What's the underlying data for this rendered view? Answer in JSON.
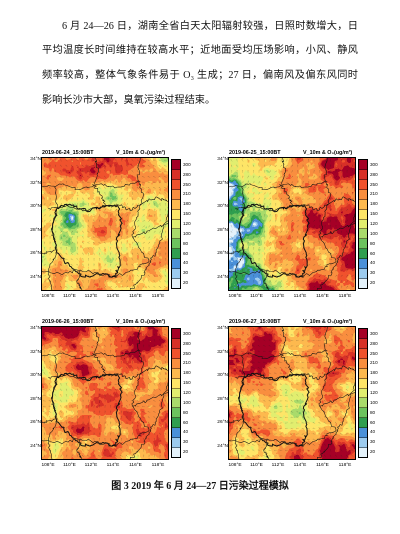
{
  "body": {
    "paragraph_lines": [
      "6 月 24—26 日，湖南全省白天太阳辐射较强，日照时数增大，日",
      "平均温度长时间维持在较高水平；近地面受均压场影响，小风、静风",
      "频率较高，整体气象条件易于 O₃ 生成；27 日，偏南风及偏东风同时",
      "影响长沙市大部，臭氧污染过程结束。"
    ]
  },
  "figure": {
    "panels": [
      {
        "date": "2019-06-24_15:00BT",
        "variable": "V_10m & O₃(ug/m³)"
      },
      {
        "date": "2019-06-25_15:00BT",
        "variable": "V_10m & O₃(ug/m³)"
      },
      {
        "date": "2019-06-26_15:00BT",
        "variable": "V_10m & O₃(ug/m³)"
      },
      {
        "date": "2019-06-27_15:00BT",
        "variable": "V_10m & O₃(ug/m³)"
      }
    ],
    "lat_labels": [
      "34°N",
      "32°N",
      "30°N",
      "28°N",
      "26°N",
      "24°N"
    ],
    "lon_labels": [
      "108°E",
      "110°E",
      "112°E",
      "114°E",
      "116°E",
      "118°E"
    ],
    "colorbar": {
      "labels": [
        "300",
        "280",
        "250",
        "210",
        "180",
        "150",
        "120",
        "100",
        "80",
        "60",
        "40",
        "30",
        "20"
      ],
      "colors": [
        "#a50026",
        "#d73027",
        "#f0522d",
        "#f98e3f",
        "#fdb94e",
        "#fee567",
        "#e1ee6f",
        "#a9db6b",
        "#6cc35e",
        "#2f9e4f",
        "#4a90d9",
        "#9ccbef",
        "#e4f2fb"
      ]
    },
    "caption": "图 3 2019 年 6 月 24—27 日污染过程模拟"
  }
}
